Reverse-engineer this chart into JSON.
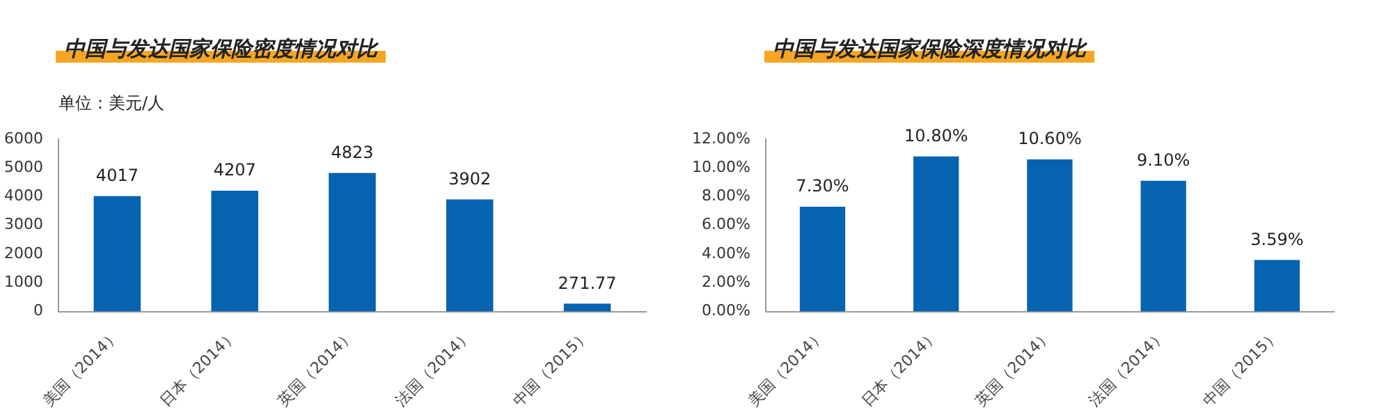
{
  "chart_data": [
    {
      "type": "bar",
      "title": "中国与发达国家保险密度情况对比",
      "ylabel": "单位：美元/人",
      "categories": [
        "美国（2014）",
        "日本（2014）",
        "英国（2014）",
        "法国（2014）",
        "中国（2015）"
      ],
      "values": [
        4017,
        4207,
        4823,
        3902,
        271.77
      ],
      "color": "#0563b0",
      "ylim": [
        0,
        6000
      ],
      "yticks": [
        0,
        1000,
        2000,
        3000,
        4000,
        5000,
        6000
      ],
      "grid": false,
      "legend": false,
      "data_labels": true
    },
    {
      "type": "bar",
      "title": "中国与发达国家保险深度情况对比",
      "categories": [
        "美国（2014）",
        "日本（2014）",
        "英国（2014）",
        "法国（2014）",
        "中国（2015）"
      ],
      "values": [
        7.3,
        10.8,
        10.6,
        9.1,
        3.59
      ],
      "color": "#0563b0",
      "value_labels": [
        "7.30%",
        "10.80%",
        "10.60%",
        "9.10%",
        "3.59%"
      ],
      "ylim": [
        0,
        12
      ],
      "yticks": [
        {
          "value": 0,
          "label": "0.00%"
        },
        {
          "value": 2,
          "label": "2.00%"
        },
        {
          "value": 4,
          "label": "4.00%"
        },
        {
          "value": 6,
          "label": "6.00%"
        },
        {
          "value": 8,
          "label": "8.00%"
        },
        {
          "value": 10,
          "label": "10.00%"
        },
        {
          "value": 12,
          "label": "12.00%"
        }
      ],
      "grid": false,
      "legend": false
    }
  ]
}
